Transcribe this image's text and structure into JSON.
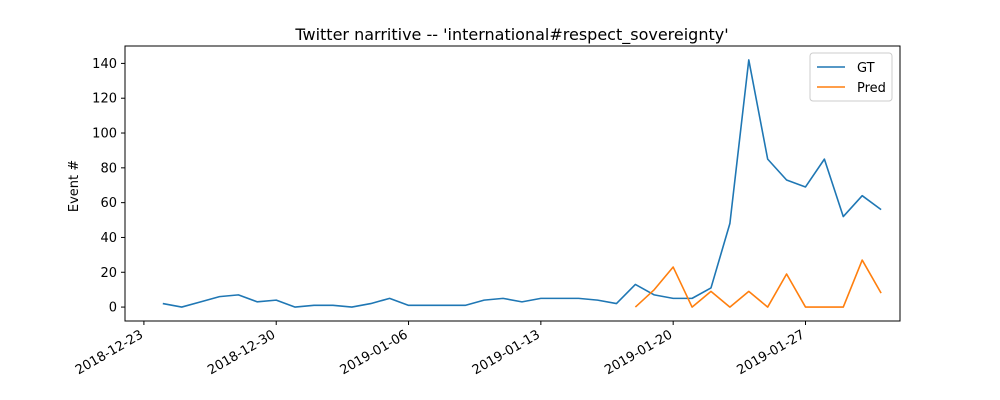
{
  "chart_data": {
    "type": "line",
    "title": "Twitter narritive -- 'international#respect_sovereignty'",
    "xlabel": "",
    "ylabel": "Event #",
    "xlim": [
      "2018-12-22",
      "2019-02-01"
    ],
    "ylim": [
      -8,
      150
    ],
    "x_ticks": [
      "2018-12-23",
      "2018-12-30",
      "2019-01-06",
      "2019-01-13",
      "2019-01-20",
      "2019-01-27"
    ],
    "y_ticks": [
      0,
      20,
      40,
      60,
      80,
      100,
      120,
      140
    ],
    "grid": false,
    "legend_position": "top-right",
    "series": [
      {
        "name": "GT",
        "color": "#1f77b4",
        "x": [
          "2018-12-24",
          "2018-12-25",
          "2018-12-26",
          "2018-12-27",
          "2018-12-28",
          "2018-12-29",
          "2018-12-30",
          "2018-12-31",
          "2019-01-01",
          "2019-01-02",
          "2019-01-03",
          "2019-01-04",
          "2019-01-05",
          "2019-01-06",
          "2019-01-07",
          "2019-01-08",
          "2019-01-09",
          "2019-01-10",
          "2019-01-11",
          "2019-01-12",
          "2019-01-13",
          "2019-01-14",
          "2019-01-15",
          "2019-01-16",
          "2019-01-17",
          "2019-01-18",
          "2019-01-19",
          "2019-01-20",
          "2019-01-21",
          "2019-01-22",
          "2019-01-23",
          "2019-01-24",
          "2019-01-25",
          "2019-01-26",
          "2019-01-27",
          "2019-01-28",
          "2019-01-29",
          "2019-01-30",
          "2019-01-31"
        ],
        "values": [
          2,
          0,
          3,
          6,
          7,
          3,
          4,
          0,
          1,
          1,
          0,
          2,
          5,
          1,
          1,
          1,
          1,
          4,
          5,
          3,
          5,
          5,
          5,
          4,
          2,
          13,
          7,
          5,
          5,
          11,
          48,
          142,
          85,
          73,
          69,
          85,
          52,
          64,
          56
        ]
      },
      {
        "name": "Pred",
        "color": "#ff7f0e",
        "x": [
          "2019-01-18",
          "2019-01-19",
          "2019-01-20",
          "2019-01-21",
          "2019-01-22",
          "2019-01-23",
          "2019-01-24",
          "2019-01-25",
          "2019-01-26",
          "2019-01-27",
          "2019-01-28",
          "2019-01-29",
          "2019-01-30",
          "2019-01-31"
        ],
        "values": [
          0,
          10,
          23,
          0,
          9,
          0,
          9,
          0,
          19,
          0,
          0,
          0,
          27,
          8
        ]
      }
    ]
  }
}
